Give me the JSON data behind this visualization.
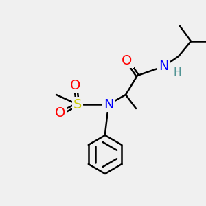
{
  "background_color": "#f0f0f0",
  "bond_color": "#000000",
  "bond_width": 1.8,
  "atom_colors": {
    "O": "#ff0000",
    "N": "#0000ff",
    "S": "#cccc00",
    "C": "#000000",
    "H": "#4a9090"
  },
  "font_size_atom": 14,
  "font_size_small": 11
}
